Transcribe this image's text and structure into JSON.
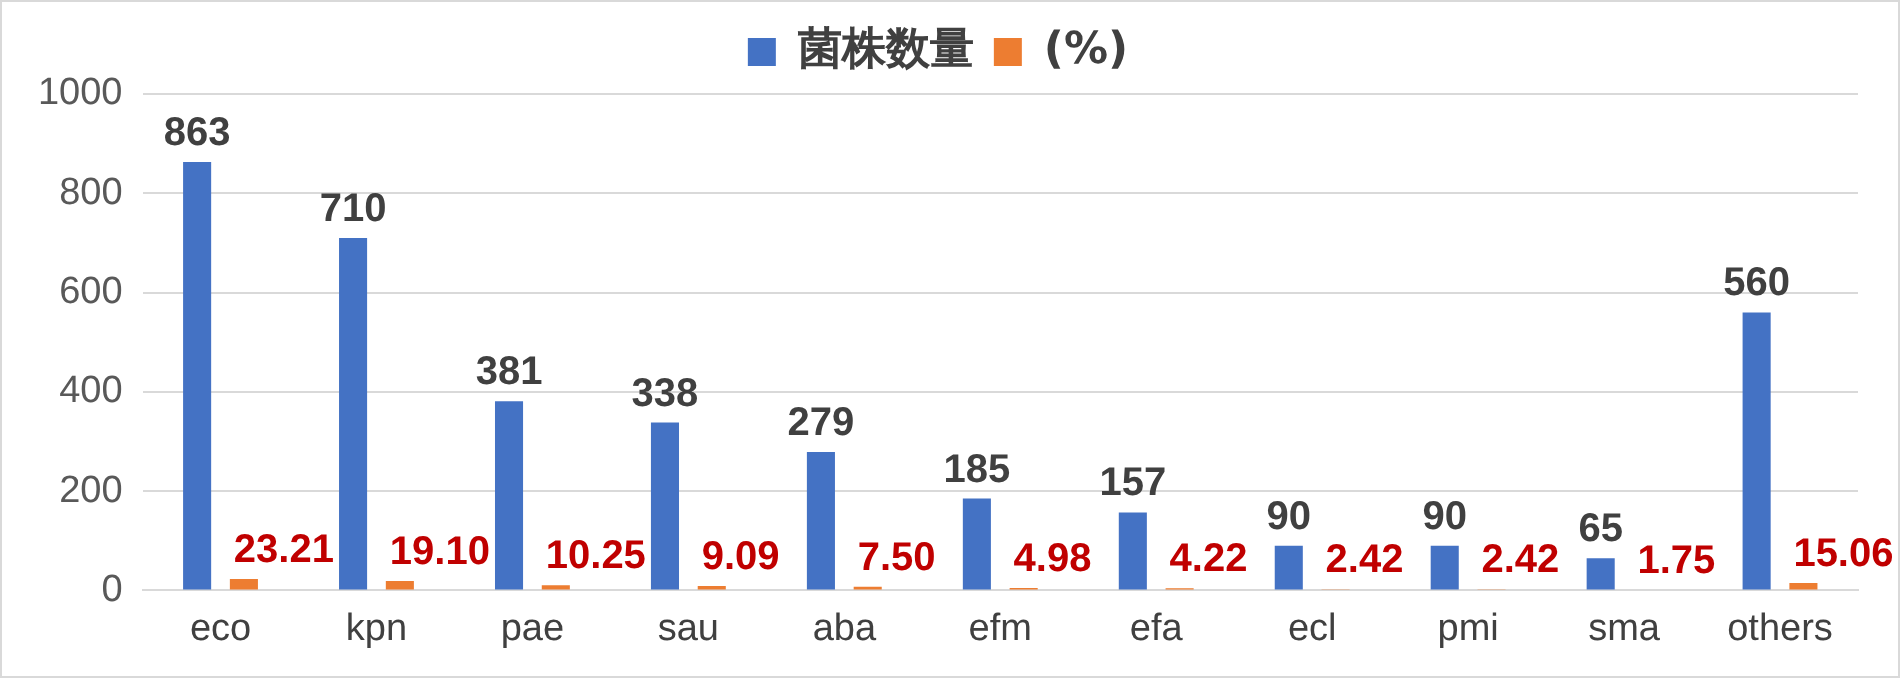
{
  "chart_data": {
    "type": "bar",
    "categories": [
      "eco",
      "kpn",
      "pae",
      "sau",
      "aba",
      "efm",
      "efa",
      "ecl",
      "pmi",
      "sma",
      "others"
    ],
    "series": [
      {
        "name": "菌株数量",
        "color": "#4472c4",
        "values": [
          863,
          710,
          381,
          338,
          279,
          185,
          157,
          90,
          90,
          65,
          560
        ]
      },
      {
        "name": "(%)",
        "color": "#ed7d31",
        "values": [
          23.21,
          19.1,
          10.25,
          9.09,
          7.5,
          4.98,
          4.22,
          2.42,
          2.42,
          1.75,
          15.06
        ],
        "value_labels": [
          "23.21",
          "19.10",
          "10.25",
          "9.09",
          "7.50",
          "4.98",
          "4.22",
          "2.42",
          "2.42",
          "1.75",
          "15.06"
        ]
      }
    ],
    "ylim": [
      0,
      1000
    ],
    "yticks": [
      0,
      200,
      400,
      600,
      800,
      {
        "value": 1000,
        "label": "1000"
      }
    ],
    "grid": "y",
    "legend": "top",
    "data_labels": true
  }
}
